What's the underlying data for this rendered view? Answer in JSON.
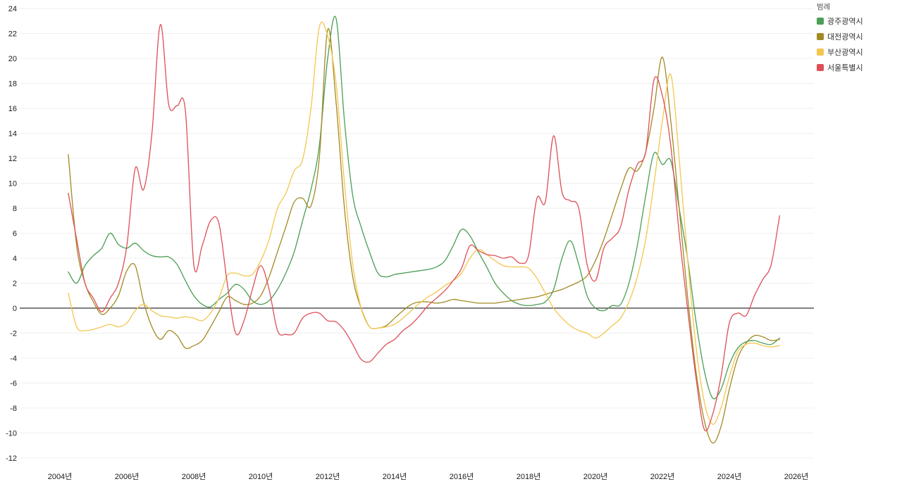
{
  "legend": {
    "title": "범례"
  },
  "chart_data": {
    "type": "line",
    "title": "",
    "xlabel": "",
    "ylabel": "",
    "x_tick_labels": [
      "2004년",
      "2006년",
      "2008년",
      "2010년",
      "2012년",
      "2014년",
      "2016년",
      "2018년",
      "2020년",
      "2022년",
      "2024년",
      "2026년"
    ],
    "x_ticks": [
      2004,
      2006,
      2008,
      2010,
      2012,
      2014,
      2016,
      2018,
      2020,
      2022,
      2024,
      2026
    ],
    "y_ticks": [
      -12,
      -10,
      -8,
      -6,
      -4,
      -2,
      0,
      2,
      4,
      6,
      8,
      10,
      12,
      14,
      16,
      18,
      20,
      22,
      24
    ],
    "ylim": [
      -12,
      24
    ],
    "xlim": [
      2003.5,
      2026.5
    ],
    "grid": "horizontal-faint, zero-line-black",
    "legend_position": "top-right",
    "x": [
      2004.25,
      2004.5,
      2004.75,
      2005,
      2005.25,
      2005.5,
      2005.75,
      2006,
      2006.25,
      2006.5,
      2006.75,
      2007,
      2007.25,
      2007.5,
      2007.75,
      2008,
      2008.25,
      2008.5,
      2008.75,
      2009,
      2009.25,
      2009.5,
      2009.75,
      2010,
      2010.25,
      2010.5,
      2010.75,
      2011,
      2011.25,
      2011.5,
      2011.75,
      2012,
      2012.25,
      2012.5,
      2012.75,
      2013,
      2013.25,
      2013.5,
      2013.75,
      2014,
      2014.25,
      2014.5,
      2014.75,
      2015,
      2015.25,
      2015.5,
      2015.75,
      2016,
      2016.25,
      2016.5,
      2016.75,
      2017,
      2017.25,
      2017.5,
      2017.75,
      2018,
      2018.25,
      2018.5,
      2018.75,
      2019,
      2019.25,
      2019.5,
      2019.75,
      2020,
      2020.25,
      2020.5,
      2020.75,
      2021,
      2021.25,
      2021.5,
      2021.75,
      2022,
      2022.25,
      2022.5,
      2022.75,
      2023,
      2023.25,
      2023.5,
      2023.75,
      2024,
      2024.25,
      2024.5,
      2024.75,
      2025,
      2025.25,
      2025.5
    ],
    "series": [
      {
        "name": "광주광역시",
        "color": "#4a9e55",
        "values": [
          2.9,
          2.0,
          3.4,
          4.2,
          4.8,
          6.0,
          5.1,
          4.8,
          5.2,
          4.6,
          4.2,
          4.1,
          4.1,
          3.5,
          2.2,
          1.0,
          0.3,
          0.1,
          0.7,
          1.2,
          1.9,
          1.5,
          0.6,
          0.3,
          0.6,
          1.5,
          2.8,
          4.5,
          7.0,
          9.5,
          13.0,
          20.0,
          23.2,
          15.0,
          9.0,
          6.5,
          4.5,
          2.8,
          2.5,
          2.7,
          2.8,
          2.9,
          3.0,
          3.1,
          3.3,
          3.8,
          5.0,
          6.3,
          5.8,
          4.5,
          3.3,
          2.0,
          1.2,
          0.6,
          0.3,
          0.2,
          0.3,
          0.5,
          1.5,
          4.0,
          5.4,
          3.5,
          1.0,
          0.0,
          -0.2,
          0.2,
          0.3,
          2.0,
          5.0,
          9.0,
          12.4,
          11.5,
          11.8,
          8.0,
          4.0,
          -1.0,
          -5.0,
          -7.2,
          -6.5,
          -4.5,
          -3.2,
          -2.7,
          -2.6,
          -2.8,
          -2.9,
          -2.4
        ]
      },
      {
        "name": "대전광역시",
        "color": "#a18a22",
        "values": [
          12.3,
          5.0,
          2.0,
          0.5,
          -0.5,
          0.0,
          1.0,
          3.0,
          3.4,
          0.5,
          -1.5,
          -2.5,
          -1.8,
          -2.2,
          -3.2,
          -3.0,
          -2.6,
          -1.5,
          -0.3,
          0.9,
          0.6,
          0.3,
          0.4,
          1.0,
          2.5,
          4.5,
          6.5,
          8.5,
          8.8,
          8.2,
          12.0,
          22.3,
          16.5,
          8.0,
          2.5,
          0.0,
          -1.5,
          -1.6,
          -1.4,
          -0.8,
          -0.2,
          0.3,
          0.5,
          0.5,
          0.4,
          0.5,
          0.7,
          0.6,
          0.5,
          0.4,
          0.4,
          0.4,
          0.5,
          0.6,
          0.7,
          0.8,
          0.9,
          1.1,
          1.3,
          1.5,
          1.8,
          2.1,
          2.6,
          3.8,
          5.5,
          7.5,
          9.5,
          11.2,
          11.0,
          12.5,
          16.0,
          20.1,
          15.0,
          8.0,
          1.0,
          -5.0,
          -9.0,
          -10.8,
          -9.5,
          -6.5,
          -4.0,
          -2.8,
          -2.2,
          -2.3,
          -2.6,
          -2.5
        ]
      },
      {
        "name": "부산광역시",
        "color": "#f3c64f",
        "values": [
          1.2,
          -1.5,
          -1.8,
          -1.7,
          -1.5,
          -1.3,
          -1.5,
          -1.2,
          -0.2,
          0.3,
          -0.2,
          -0.6,
          -0.7,
          -0.8,
          -0.7,
          -0.8,
          -1.0,
          -0.4,
          0.8,
          2.6,
          2.8,
          2.6,
          2.7,
          3.8,
          5.5,
          8.0,
          9.2,
          11.0,
          11.9,
          16.0,
          22.5,
          21.8,
          18.0,
          10.0,
          3.5,
          0.0,
          -1.5,
          -1.6,
          -1.5,
          -1.3,
          -0.8,
          -0.2,
          0.4,
          0.9,
          1.3,
          1.8,
          2.2,
          2.8,
          4.0,
          4.7,
          4.3,
          3.8,
          3.4,
          3.3,
          3.3,
          3.2,
          2.4,
          1.2,
          0.0,
          -0.8,
          -1.4,
          -1.8,
          -2.0,
          -2.4,
          -2.0,
          -1.4,
          -0.8,
          0.5,
          2.5,
          5.5,
          10.0,
          15.0,
          18.7,
          12.0,
          4.0,
          -3.0,
          -7.5,
          -9.3,
          -8.0,
          -5.5,
          -3.5,
          -2.9,
          -2.8,
          -3.0,
          -3.1,
          -3.0
        ]
      },
      {
        "name": "서울특별시",
        "color": "#dd4f57",
        "values": [
          9.2,
          5.5,
          2.0,
          0.8,
          -0.3,
          0.8,
          2.0,
          5.0,
          11.2,
          9.5,
          14.0,
          22.7,
          16.3,
          16.2,
          15.8,
          3.5,
          5.0,
          7.0,
          6.8,
          2.0,
          -2.0,
          -1.0,
          1.5,
          3.4,
          1.5,
          -1.8,
          -2.1,
          -2.0,
          -0.8,
          -0.4,
          -0.4,
          -1.0,
          -1.1,
          -1.8,
          -2.9,
          -4.1,
          -4.3,
          -3.6,
          -2.9,
          -2.5,
          -1.8,
          -1.3,
          -0.6,
          0.2,
          0.8,
          1.4,
          2.2,
          3.2,
          5.0,
          4.6,
          4.3,
          4.2,
          4.0,
          4.1,
          3.6,
          4.2,
          8.8,
          8.5,
          13.8,
          9.3,
          8.6,
          8.0,
          3.5,
          2.2,
          4.8,
          5.6,
          6.5,
          9.5,
          11.5,
          12.5,
          18.3,
          17.0,
          13.0,
          6.0,
          0.0,
          -5.5,
          -9.7,
          -8.5,
          -5.5,
          -1.2,
          -0.4,
          -0.6,
          1.0,
          2.3,
          3.5,
          7.4
        ]
      }
    ]
  }
}
